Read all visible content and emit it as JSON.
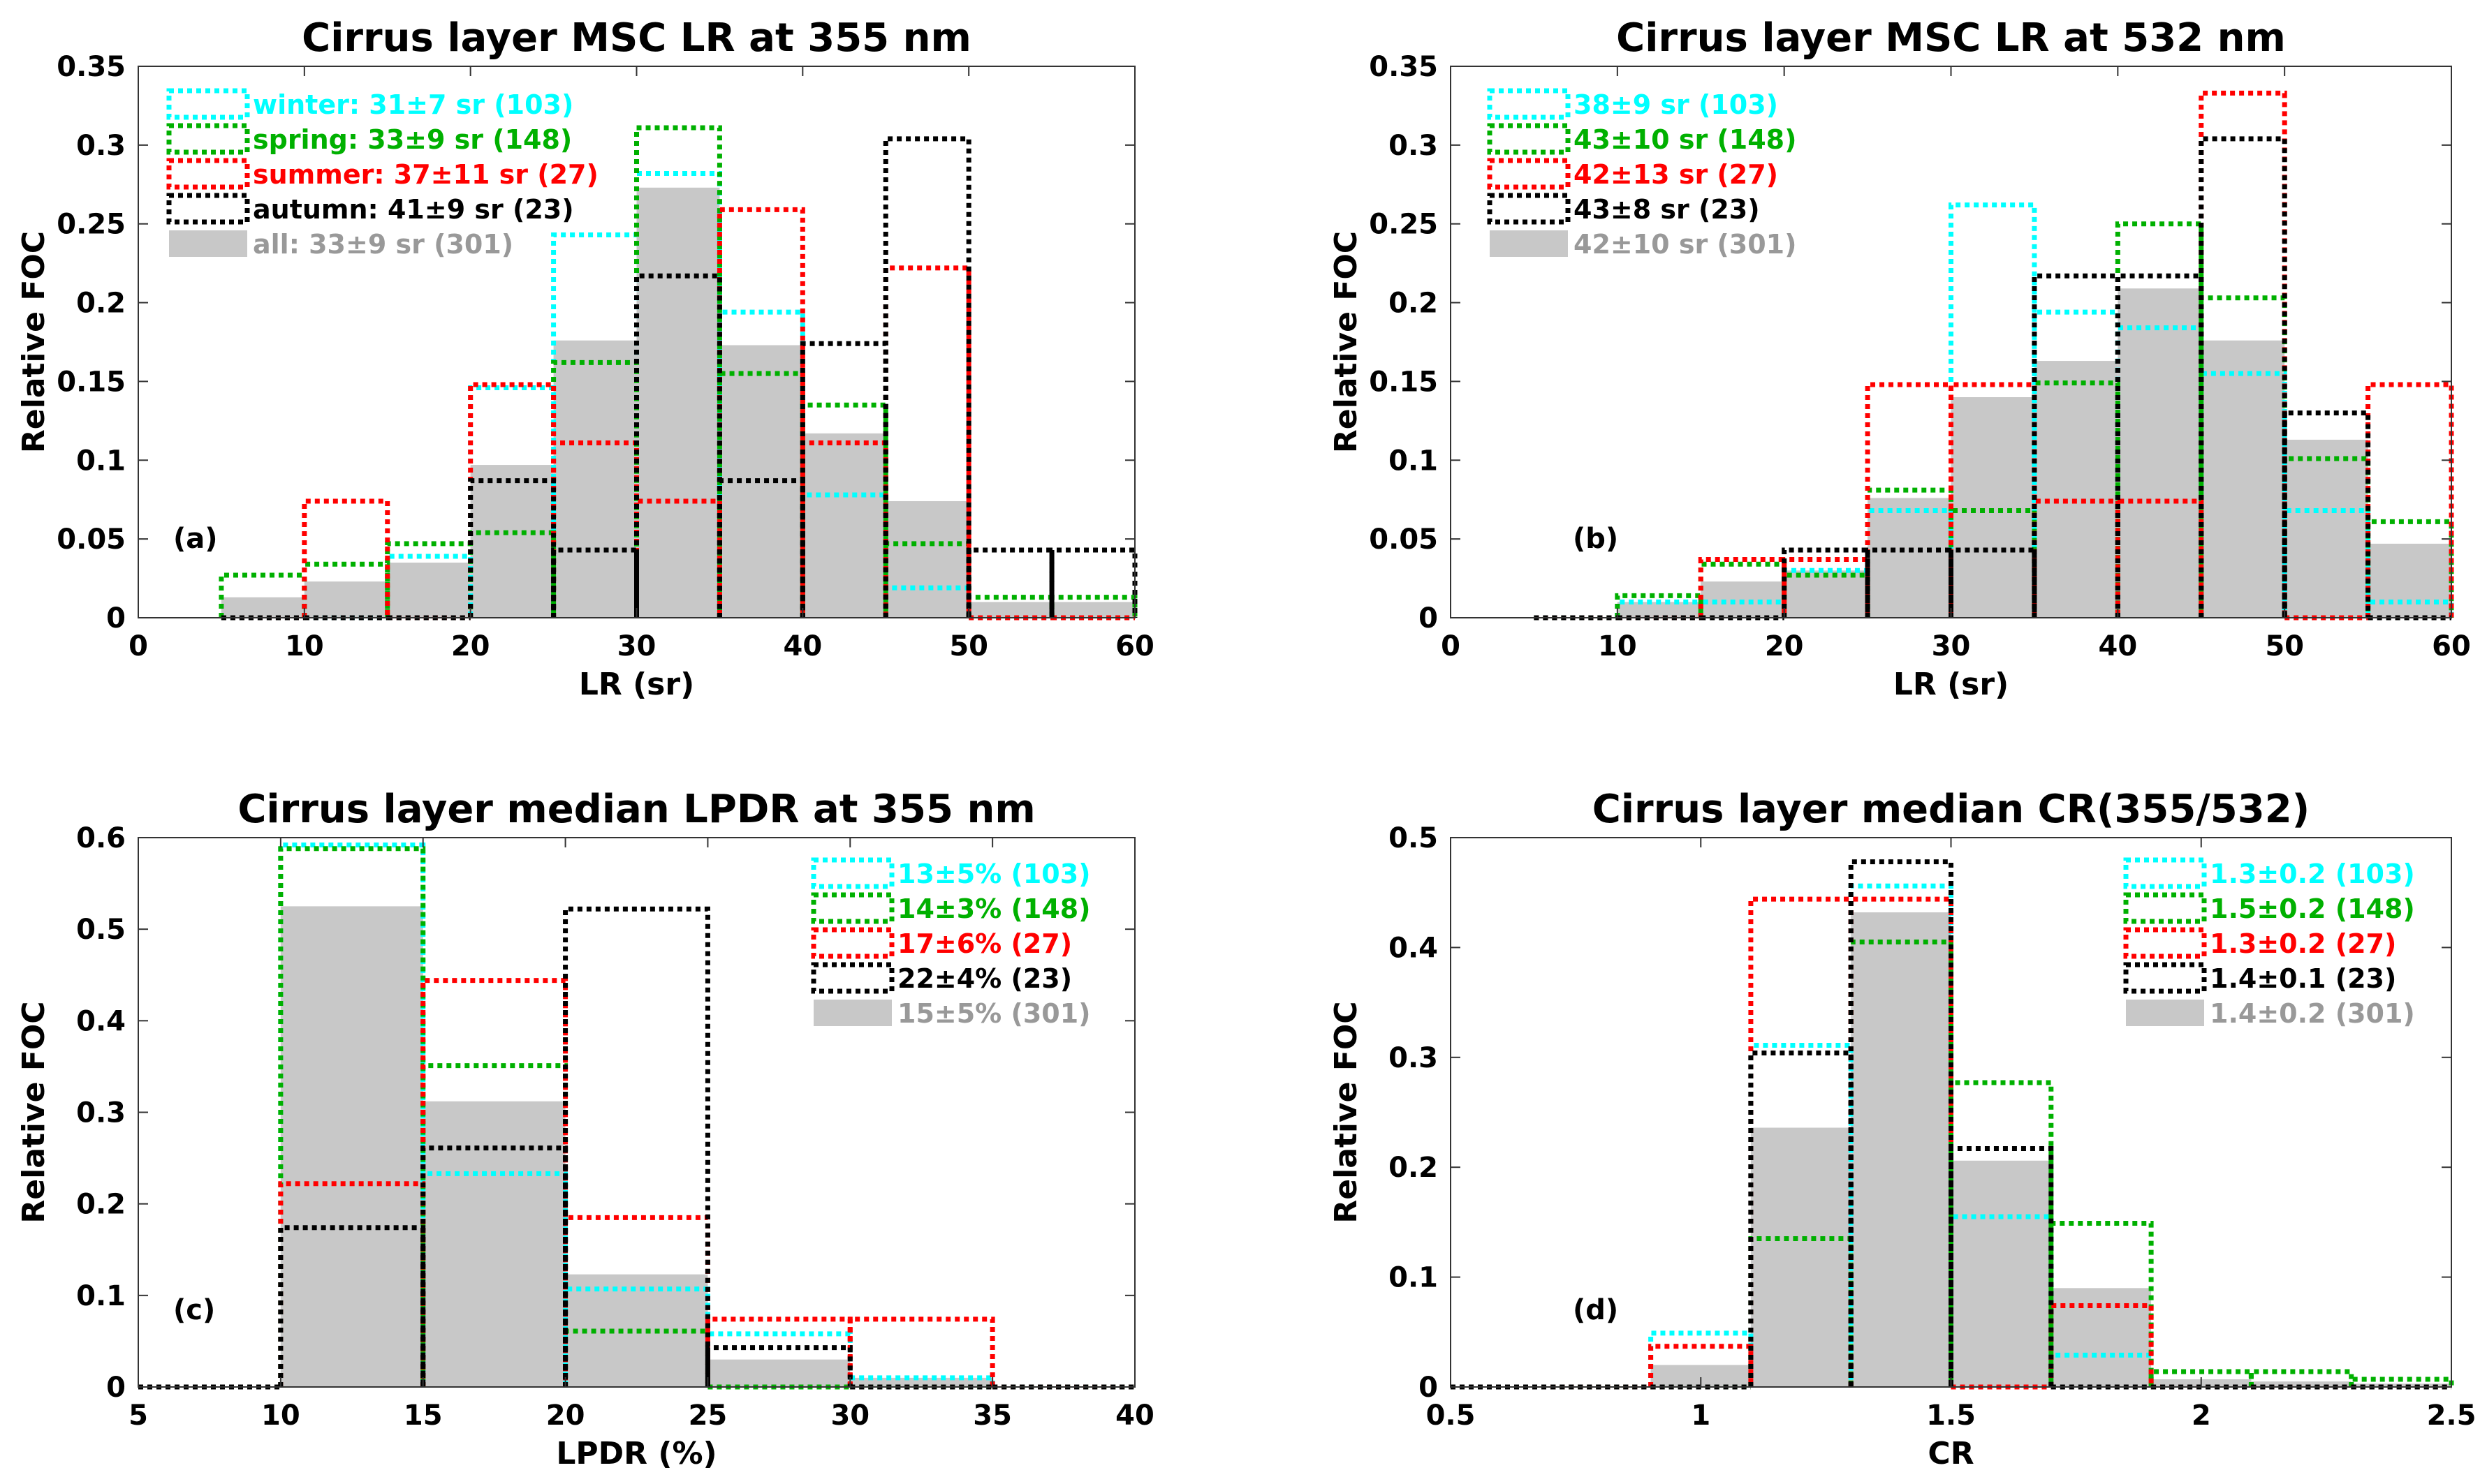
{
  "colors": {
    "winter": "#00ffff",
    "spring": "#00b000",
    "summer": "#ff0000",
    "autumn": "#000000",
    "all_fill": "#c8c8c8",
    "all_text": "#999999"
  },
  "chart_data": [
    {
      "type": "bar",
      "title": "Cirrus layer MSC LR at 355 nm",
      "xlabel": "LR (sr)",
      "ylabel": "Relative FOC",
      "panel_label": "(a)",
      "legend_position": "top-left",
      "xlim": [
        0,
        60
      ],
      "ylim": [
        0,
        0.35
      ],
      "xticks": [
        0,
        10,
        20,
        30,
        40,
        50,
        60
      ],
      "xtick_labels": [
        "0",
        "10",
        "20",
        "30",
        "40",
        "50",
        "60"
      ],
      "yticks": [
        0,
        0.05,
        0.1,
        0.15,
        0.2,
        0.25,
        0.3,
        0.35
      ],
      "ytick_labels": [
        "0",
        "0.05",
        "0.1",
        "0.15",
        "0.2",
        "0.25",
        "0.3",
        "0.35"
      ],
      "bin_edges": [
        5,
        10,
        15,
        20,
        25,
        30,
        35,
        40,
        45,
        50,
        55,
        60
      ],
      "all": {
        "name": "all",
        "label": "all: 33±9 sr (301)",
        "values": [
          0.013,
          0.023,
          0.035,
          0.097,
          0.176,
          0.273,
          0.173,
          0.117,
          0.074,
          0.01,
          0.01
        ]
      },
      "series": [
        {
          "name": "winter",
          "label": "winter: 31±7 sr (103)",
          "values": [
            0,
            0,
            0.039,
            0.146,
            0.243,
            0.282,
            0.194,
            0.078,
            0.019,
            0,
            0
          ]
        },
        {
          "name": "spring",
          "label": "spring: 33±9 sr (148)",
          "values": [
            0.027,
            0.034,
            0.047,
            0.054,
            0.162,
            0.311,
            0.155,
            0.135,
            0.047,
            0.013,
            0.013
          ]
        },
        {
          "name": "summer",
          "label": "summer: 37±11 sr (27)",
          "values": [
            0,
            0.074,
            0,
            0.148,
            0.111,
            0.074,
            0.259,
            0.111,
            0.222,
            0,
            0
          ]
        },
        {
          "name": "autumn",
          "label": "autumn: 41±9 sr (23)",
          "values": [
            0,
            0,
            0,
            0.087,
            0.043,
            0.217,
            0.087,
            0.174,
            0.304,
            0.043,
            0.043
          ]
        }
      ]
    },
    {
      "type": "bar",
      "title": "Cirrus layer MSC LR at 532 nm",
      "xlabel": "LR (sr)",
      "ylabel": "Relative FOC",
      "panel_label": "(b)",
      "legend_position": "top-left",
      "xlim": [
        0,
        60
      ],
      "ylim": [
        0,
        0.35
      ],
      "xticks": [
        0,
        10,
        20,
        30,
        40,
        50,
        60
      ],
      "xtick_labels": [
        "0",
        "10",
        "20",
        "30",
        "40",
        "50",
        "60"
      ],
      "yticks": [
        0,
        0.05,
        0.1,
        0.15,
        0.2,
        0.25,
        0.3,
        0.35
      ],
      "ytick_labels": [
        "0",
        "0.05",
        "0.1",
        "0.15",
        "0.2",
        "0.25",
        "0.3",
        "0.35"
      ],
      "bin_edges": [
        5,
        10,
        15,
        20,
        25,
        30,
        35,
        40,
        45,
        50,
        55,
        60
      ],
      "all": {
        "name": "all",
        "label": "42±10 sr (301)",
        "values": [
          0,
          0.01,
          0.023,
          0.03,
          0.076,
          0.14,
          0.163,
          0.209,
          0.176,
          0.113,
          0.047
        ]
      },
      "series": [
        {
          "name": "winter",
          "label": "38±9 sr (103)",
          "values": [
            0,
            0.01,
            0.01,
            0.03,
            0.068,
            0.262,
            0.194,
            0.184,
            0.155,
            0.068,
            0.01
          ]
        },
        {
          "name": "spring",
          "label": "43±10 sr (148)",
          "values": [
            0,
            0.014,
            0.034,
            0.027,
            0.081,
            0.068,
            0.149,
            0.25,
            0.203,
            0.101,
            0.061
          ]
        },
        {
          "name": "summer",
          "label": "42±13 sr (27)",
          "values": [
            0,
            0,
            0.037,
            0.037,
            0.148,
            0.148,
            0.074,
            0.074,
            0.333,
            0,
            0.148
          ]
        },
        {
          "name": "autumn",
          "label": "43±8 sr (23)",
          "values": [
            0,
            0,
            0,
            0.043,
            0.043,
            0.043,
            0.217,
            0.217,
            0.304,
            0.13,
            0
          ]
        }
      ]
    },
    {
      "type": "bar",
      "title": "Cirrus layer median LPDR at 355 nm",
      "xlabel": "LPDR (%)",
      "ylabel": "Relative FOC",
      "panel_label": "(c)",
      "legend_position": "top-right",
      "xlim": [
        5,
        40
      ],
      "ylim": [
        0,
        0.6
      ],
      "xticks": [
        5,
        10,
        15,
        20,
        25,
        30,
        35,
        40
      ],
      "xtick_labels": [
        "5",
        "10",
        "15",
        "20",
        "25",
        "30",
        "35",
        "40"
      ],
      "yticks": [
        0,
        0.1,
        0.2,
        0.3,
        0.4,
        0.5,
        0.6
      ],
      "ytick_labels": [
        "0",
        "0.1",
        "0.2",
        "0.3",
        "0.4",
        "0.5",
        "0.6"
      ],
      "bin_edges": [
        5,
        10,
        15,
        20,
        25,
        30,
        35,
        40
      ],
      "all": {
        "name": "all",
        "label": "15±5% (301)",
        "values": [
          0,
          0.525,
          0.312,
          0.123,
          0.03,
          0.01,
          0
        ]
      },
      "series": [
        {
          "name": "winter",
          "label": "13±5% (103)",
          "values": [
            0,
            0.592,
            0.233,
            0.107,
            0.058,
            0.01,
            0
          ]
        },
        {
          "name": "spring",
          "label": "14±3% (148)",
          "values": [
            0,
            0.588,
            0.351,
            0.061,
            0,
            0,
            0
          ]
        },
        {
          "name": "summer",
          "label": "17±6% (27)",
          "values": [
            0,
            0.222,
            0.444,
            0.185,
            0.074,
            0.074,
            0
          ]
        },
        {
          "name": "autumn",
          "label": "22±4% (23)",
          "values": [
            0,
            0.174,
            0.261,
            0.522,
            0.043,
            0,
            0
          ]
        }
      ]
    },
    {
      "type": "bar",
      "title": "Cirrus layer median CR(355/532)",
      "xlabel": "CR",
      "ylabel": "Relative FOC",
      "panel_label": "(d)",
      "legend_position": "top-right",
      "xlim": [
        0.5,
        2.5
      ],
      "ylim": [
        0,
        0.5
      ],
      "xticks": [
        0.5,
        1,
        1.5,
        2,
        2.5
      ],
      "xtick_labels": [
        "0.5",
        "1",
        "1.5",
        "2",
        "2.5"
      ],
      "yticks": [
        0,
        0.1,
        0.2,
        0.3,
        0.4,
        0.5
      ],
      "ytick_labels": [
        "0",
        "0.1",
        "0.2",
        "0.3",
        "0.4",
        "0.5"
      ],
      "bin_edges": [
        0.5,
        0.7,
        0.9,
        1.1,
        1.3,
        1.5,
        1.7,
        1.9,
        2.1,
        2.3,
        2.5
      ],
      "all": {
        "name": "all",
        "label": "1.4±0.2 (301)",
        "values": [
          0,
          0,
          0.02,
          0.236,
          0.432,
          0.206,
          0.09,
          0.007,
          0.005,
          0.003
        ]
      },
      "series": [
        {
          "name": "winter",
          "label": "1.3±0.2 (103)",
          "values": [
            0,
            0,
            0.049,
            0.311,
            0.456,
            0.155,
            0.029,
            0,
            0,
            0
          ]
        },
        {
          "name": "spring",
          "label": "1.5±0.2 (148)",
          "values": [
            0,
            0,
            0,
            0.135,
            0.405,
            0.277,
            0.149,
            0.014,
            0.014,
            0.007
          ]
        },
        {
          "name": "summer",
          "label": "1.3±0.2 (27)",
          "values": [
            0,
            0,
            0.037,
            0.444,
            0.444,
            0,
            0.074,
            0,
            0,
            0
          ]
        },
        {
          "name": "autumn",
          "label": "1.4±0.1 (23)",
          "values": [
            0,
            0,
            0,
            0.304,
            0.478,
            0.217,
            0,
            0,
            0,
            0
          ]
        }
      ]
    }
  ]
}
